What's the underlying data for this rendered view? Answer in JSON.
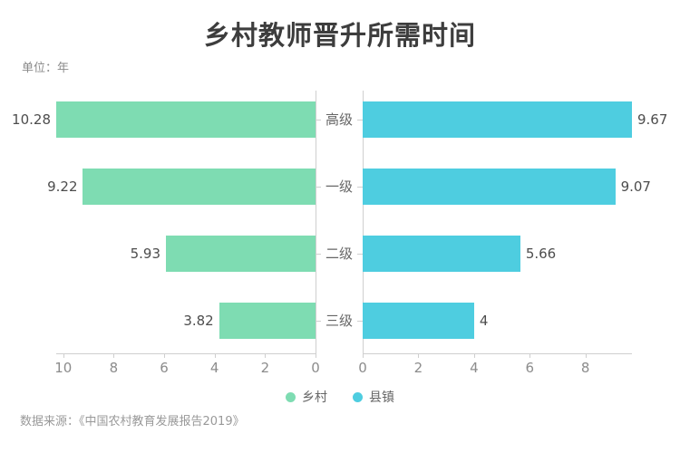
{
  "title": "乡村教师晋升所需时间",
  "unit_label": "单位：年",
  "source": "数据来源：《中国农村教育发展报告2019》",
  "colors": {
    "rural": "#7edcb2",
    "county": "#4ecde0",
    "axis_line": "#cfcfcf",
    "title_text": "#3d3d3d",
    "value_text": "#4d4d4d",
    "tick_text": "#8c8c8c"
  },
  "chart_data": {
    "type": "bar",
    "orientation": "horizontal-mirrored",
    "title": "乡村教师晋升所需时间",
    "unit": "年",
    "categories": [
      "高级",
      "一级",
      "二级",
      "三级"
    ],
    "series": [
      {
        "name": "乡村",
        "side": "left",
        "color": "#7edcb2",
        "values": [
          10.28,
          9.22,
          5.93,
          3.82
        ],
        "value_labels": [
          "10.28",
          "9.22",
          "5.93",
          "3.82"
        ],
        "axis_ticks": [
          10,
          8,
          6,
          4,
          2,
          0
        ],
        "axis_max": 10.28
      },
      {
        "name": "县镇",
        "side": "right",
        "color": "#4ecde0",
        "values": [
          9.67,
          9.07,
          5.66,
          4
        ],
        "value_labels": [
          "9.67",
          "9.07",
          "5.66",
          "4"
        ],
        "axis_ticks": [
          0,
          2,
          4,
          6,
          8
        ],
        "axis_max": 9.67
      }
    ],
    "legend": [
      "乡村",
      "县镇"
    ],
    "legend_position": "bottom",
    "grid": false
  }
}
